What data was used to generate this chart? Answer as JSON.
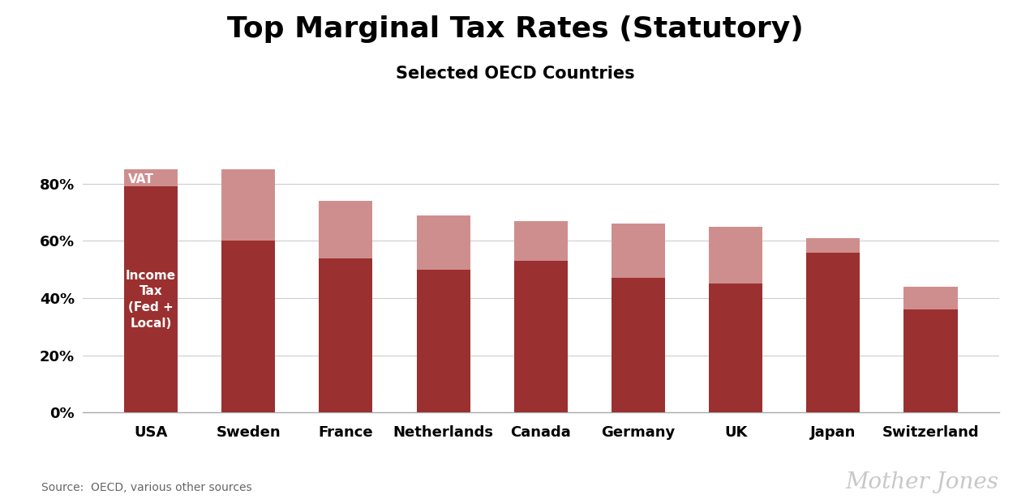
{
  "categories": [
    "USA",
    "Sweden",
    "France",
    "Netherlands",
    "Canada",
    "Germany",
    "UK",
    "Japan",
    "Switzerland"
  ],
  "income_tax": [
    79,
    60,
    54,
    50,
    53,
    47,
    45,
    56,
    36
  ],
  "vat": [
    6,
    25,
    20,
    19,
    14,
    19,
    20,
    5,
    8
  ],
  "income_tax_color": "#9B3030",
  "vat_color": "#CF8E8E",
  "title": "Top Marginal Tax Rates (Statutory)",
  "subtitle": "Selected OECD Countries",
  "ylabel_ticks": [
    0,
    20,
    40,
    60,
    80
  ],
  "ytick_labels": [
    "0%",
    "20%",
    "40%",
    "60%",
    "80%"
  ],
  "ylim_max": 95,
  "background_color": "#ffffff",
  "annotation_vat": "VAT",
  "annotation_income": "Income\nTax\n(Fed +\nLocal)",
  "watermark": "Mother Jones",
  "source_label": "Source:  OECD, various other sources",
  "bar_width": 0.55
}
